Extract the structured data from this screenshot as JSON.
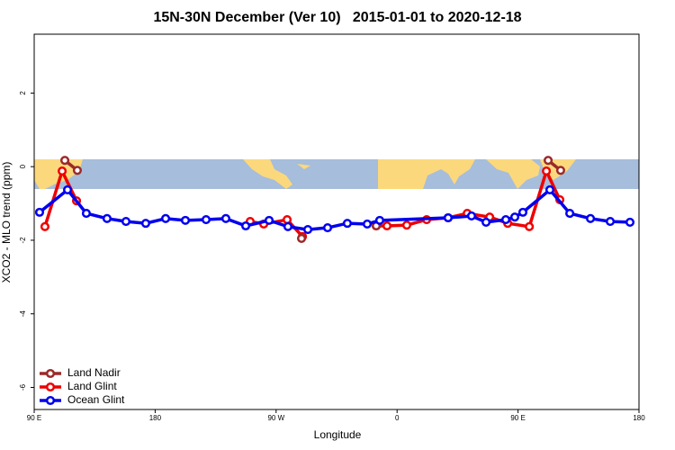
{
  "chart_data": {
    "type": "line",
    "title": "15N-30N December (Ver 10)   2015-01-01 to 2020-12-18",
    "x_label": "Longitude",
    "y_label": "XCO2 - MLO trend (ppm)",
    "xlim": [
      90,
      540
    ],
    "xticks": [
      {
        "value": 90,
        "label": "90 E"
      },
      180,
      {
        "value": 270,
        "label": "90 W"
      },
      {
        "value": 360,
        "label": "0"
      },
      {
        "value": 450,
        "label": "90 E"
      },
      {
        "value": 540,
        "label": "180"
      }
    ],
    "ylim": [
      -6.6,
      3.6
    ],
    "yticks": [
      -6,
      -4,
      -2,
      0,
      2
    ],
    "legend": "bottom-left",
    "series": [
      {
        "name": "Land Nadir",
        "color": "#9b2a2a",
        "x": [
          112.8,
          122.1,
          null,
          288.9,
          null,
          344.5,
          null,
          472.4,
          481.7
        ],
        "values": [
          0.17,
          -0.1,
          null,
          -1.95,
          null,
          -1.61,
          null,
          0.17,
          -0.1
        ]
      },
      {
        "name": "Land Glint",
        "color": "#ee0000",
        "x": [
          98,
          110.8,
          121.5,
          null,
          250.7,
          260.8,
          278.2,
          289.6,
          null,
          344.5,
          352.5,
          367.2,
          382.0,
          398,
          412.2,
          428.9,
          442.3,
          458.4,
          471.1,
          481.1
        ],
        "values": [
          -1.63,
          -0.12,
          -0.93,
          null,
          -1.49,
          -1.56,
          -1.44,
          -1.9,
          null,
          -1.61,
          -1.61,
          -1.59,
          -1.44,
          -1.39,
          -1.27,
          -1.37,
          -1.54,
          -1.63,
          -0.12,
          -0.9
        ]
      },
      {
        "name": "Ocean Glint",
        "color": "#0000ee",
        "x": [
          94,
          114.8,
          128.8,
          144.2,
          158.3,
          173,
          187.8,
          202.5,
          217.9,
          232.6,
          247.4,
          264.8,
          278.8,
          293.6,
          308.3,
          323,
          337.8,
          347.1,
          398,
          415.4,
          426.2,
          440.9,
          447.6,
          453.6,
          473.7,
          488.5,
          503.9,
          518.6,
          533.3
        ],
        "values": [
          -1.24,
          -0.63,
          -1.27,
          -1.41,
          -1.49,
          -1.54,
          -1.41,
          -1.46,
          -1.44,
          -1.41,
          -1.61,
          -1.46,
          -1.63,
          -1.71,
          -1.66,
          -1.54,
          -1.56,
          -1.46,
          -1.39,
          -1.34,
          -1.51,
          -1.44,
          -1.37,
          -1.24,
          -0.63,
          -1.27,
          -1.41,
          -1.49,
          -1.51
        ]
      }
    ]
  }
}
